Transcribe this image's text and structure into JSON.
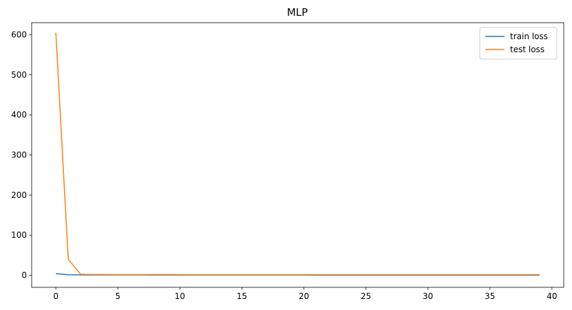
{
  "chart_data": {
    "type": "line",
    "title": "MLP",
    "xlabel": "",
    "ylabel": "",
    "xlim": [
      -1.95,
      40.95
    ],
    "ylim": [
      -30,
      630
    ],
    "xticks": [
      0,
      5,
      10,
      15,
      20,
      25,
      30,
      35,
      40
    ],
    "yticks": [
      0,
      100,
      200,
      300,
      400,
      500,
      600
    ],
    "grid": false,
    "legend_position": "top-right",
    "x": [
      0,
      1,
      2,
      3,
      4,
      5,
      6,
      7,
      8,
      9,
      10,
      11,
      12,
      13,
      14,
      15,
      16,
      17,
      18,
      19,
      20,
      21,
      22,
      23,
      24,
      25,
      26,
      27,
      28,
      29,
      30,
      31,
      32,
      33,
      34,
      35,
      36,
      37,
      38,
      39
    ],
    "series": [
      {
        "name": "train loss",
        "color": "#1f77b4",
        "values": [
          4.0,
          1.2,
          1.0,
          0.9,
          0.9,
          0.8,
          0.8,
          0.8,
          0.7,
          0.7,
          0.7,
          0.7,
          0.6,
          0.6,
          0.6,
          0.6,
          0.6,
          0.6,
          0.6,
          0.6,
          0.6,
          0.5,
          0.5,
          0.5,
          0.5,
          0.5,
          0.5,
          0.5,
          0.5,
          0.5,
          0.5,
          0.5,
          0.5,
          0.5,
          0.5,
          0.5,
          0.5,
          0.5,
          0.5,
          0.5
        ]
      },
      {
        "name": "test loss",
        "color": "#ff7f0e",
        "values": [
          605,
          40,
          2.5,
          2.0,
          1.9,
          1.8,
          1.8,
          1.7,
          1.7,
          1.7,
          1.6,
          1.6,
          1.6,
          1.6,
          1.5,
          1.5,
          1.5,
          1.5,
          1.5,
          1.5,
          1.5,
          1.4,
          1.6,
          1.4,
          1.4,
          1.4,
          1.4,
          1.4,
          1.4,
          1.4,
          1.4,
          1.4,
          1.4,
          1.4,
          1.4,
          1.4,
          1.4,
          1.4,
          1.4,
          1.4
        ]
      }
    ]
  }
}
